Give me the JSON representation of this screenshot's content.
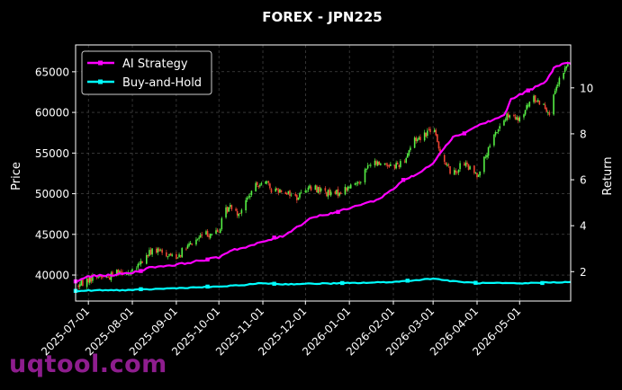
{
  "chart_data": {
    "type": "candlestick-with-lines",
    "title": "FOREX - JPN225",
    "ylabel_left": "Price",
    "ylabel_right": "Return",
    "xlabel": "",
    "x_tick_labels": [
      "2025-07-01",
      "2025-08-01",
      "2025-09-01",
      "2025-10-01",
      "2025-11-01",
      "2025-12-01",
      "2026-01-01",
      "2026-02-01",
      "2026-03-01",
      "2026-04-01",
      "2026-05-01"
    ],
    "x_range": [
      "2025-06-22",
      "2026-06-06"
    ],
    "y_left_ticks": [
      40000,
      45000,
      50000,
      55000,
      60000,
      65000
    ],
    "y_left_ylim": [
      36800,
      68300
    ],
    "y_right_ticks": [
      2,
      4,
      6,
      8,
      10
    ],
    "y_right_ylim": [
      0.72,
      11.87
    ],
    "grid": true,
    "legend_position": "top-left",
    "candle_colors": {
      "up": "#55ee44",
      "down": "#ee4433"
    },
    "series": [
      {
        "name": "AI Strategy",
        "color": "#ff00ff",
        "axis": "right",
        "points": [
          [
            "2025-06-22",
            1.55
          ],
          [
            "2025-07-01",
            1.8
          ],
          [
            "2025-07-15",
            1.84
          ],
          [
            "2025-08-01",
            1.95
          ],
          [
            "2025-08-15",
            2.2
          ],
          [
            "2025-09-01",
            2.3
          ],
          [
            "2025-09-15",
            2.45
          ],
          [
            "2025-10-01",
            2.62
          ],
          [
            "2025-10-10",
            2.95
          ],
          [
            "2025-10-20",
            3.05
          ],
          [
            "2025-11-01",
            3.3
          ],
          [
            "2025-11-15",
            3.55
          ],
          [
            "2025-11-28",
            4.05
          ],
          [
            "2025-12-05",
            4.35
          ],
          [
            "2025-12-20",
            4.55
          ],
          [
            "2026-01-01",
            4.75
          ],
          [
            "2026-01-10",
            4.95
          ],
          [
            "2026-01-20",
            5.1
          ],
          [
            "2026-02-01",
            5.6
          ],
          [
            "2026-02-08",
            6.0
          ],
          [
            "2026-02-15",
            6.15
          ],
          [
            "2026-02-22",
            6.4
          ],
          [
            "2026-03-01",
            6.75
          ],
          [
            "2026-03-10",
            7.5
          ],
          [
            "2026-03-15",
            7.85
          ],
          [
            "2026-03-25",
            8.1
          ],
          [
            "2026-04-01",
            8.35
          ],
          [
            "2026-04-10",
            8.55
          ],
          [
            "2026-04-20",
            8.8
          ],
          [
            "2026-04-25",
            9.5
          ],
          [
            "2026-05-01",
            9.7
          ],
          [
            "2026-05-10",
            9.95
          ],
          [
            "2026-05-20",
            10.3
          ],
          [
            "2026-05-25",
            10.85
          ],
          [
            "2026-06-01",
            11.1
          ],
          [
            "2026-06-06",
            11.05
          ]
        ]
      },
      {
        "name": "Buy-and-Hold",
        "color": "#00ffff",
        "axis": "right",
        "points": [
          [
            "2025-06-22",
            1.15
          ],
          [
            "2025-07-01",
            1.18
          ],
          [
            "2025-08-01",
            1.2
          ],
          [
            "2025-09-01",
            1.28
          ],
          [
            "2025-10-01",
            1.35
          ],
          [
            "2025-10-15",
            1.4
          ],
          [
            "2025-11-01",
            1.5
          ],
          [
            "2025-11-15",
            1.45
          ],
          [
            "2025-12-01",
            1.47
          ],
          [
            "2026-01-01",
            1.5
          ],
          [
            "2026-01-15",
            1.52
          ],
          [
            "2026-02-01",
            1.55
          ],
          [
            "2026-02-15",
            1.62
          ],
          [
            "2026-03-01",
            1.7
          ],
          [
            "2026-03-15",
            1.58
          ],
          [
            "2026-04-01",
            1.5
          ],
          [
            "2026-04-15",
            1.5
          ],
          [
            "2026-05-01",
            1.48
          ],
          [
            "2026-05-15",
            1.52
          ],
          [
            "2026-06-06",
            1.55
          ]
        ]
      }
    ],
    "price_path": [
      [
        "2025-06-24",
        38700
      ],
      [
        "2025-07-01",
        39500
      ],
      [
        "2025-07-08",
        39900
      ],
      [
        "2025-07-15",
        39700
      ],
      [
        "2025-07-22",
        40600
      ],
      [
        "2025-08-01",
        40300
      ],
      [
        "2025-08-08",
        41700
      ],
      [
        "2025-08-15",
        43100
      ],
      [
        "2025-08-25",
        42600
      ],
      [
        "2025-09-01",
        42300
      ],
      [
        "2025-09-10",
        43600
      ],
      [
        "2025-09-20",
        45000
      ],
      [
        "2025-10-01",
        45300
      ],
      [
        "2025-10-05",
        47800
      ],
      [
        "2025-10-10",
        48500
      ],
      [
        "2025-10-15",
        47600
      ],
      [
        "2025-10-25",
        50500
      ],
      [
        "2025-11-01",
        51800
      ],
      [
        "2025-11-07",
        50500
      ],
      [
        "2025-11-15",
        50500
      ],
      [
        "2025-11-25",
        49500
      ],
      [
        "2025-12-01",
        50700
      ],
      [
        "2025-12-10",
        50600
      ],
      [
        "2025-12-20",
        49800
      ],
      [
        "2026-01-01",
        50800
      ],
      [
        "2026-01-08",
        51600
      ],
      [
        "2026-01-15",
        53600
      ],
      [
        "2026-01-25",
        53800
      ],
      [
        "2026-02-01",
        53400
      ],
      [
        "2026-02-08",
        53900
      ],
      [
        "2026-02-15",
        56500
      ],
      [
        "2026-02-22",
        57200
      ],
      [
        "2026-03-01",
        58200
      ],
      [
        "2026-03-05",
        55600
      ],
      [
        "2026-03-10",
        53700
      ],
      [
        "2026-03-15",
        52300
      ],
      [
        "2026-03-22",
        53900
      ],
      [
        "2026-03-28",
        52800
      ],
      [
        "2026-04-01",
        52300
      ],
      [
        "2026-04-08",
        54900
      ],
      [
        "2026-04-15",
        57800
      ],
      [
        "2026-04-22",
        59500
      ],
      [
        "2026-05-01",
        59000
      ],
      [
        "2026-05-10",
        61800
      ],
      [
        "2026-05-18",
        61000
      ],
      [
        "2026-05-22",
        60000
      ],
      [
        "2026-05-28",
        63500
      ],
      [
        "2026-06-04",
        66000
      ]
    ]
  },
  "watermark": "uqtool.com"
}
